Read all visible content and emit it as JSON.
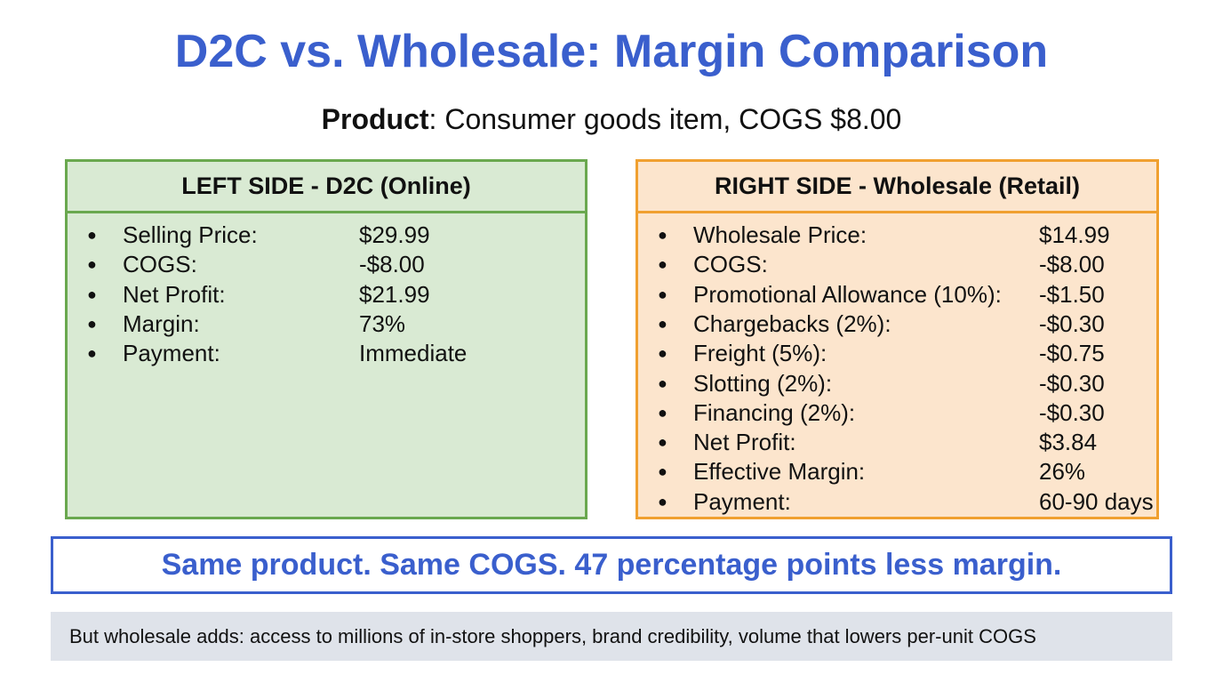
{
  "title": "D2C vs. Wholesale: Margin Comparison",
  "product": {
    "label": "Product",
    "text": ": Consumer goods item, COGS $8.00"
  },
  "panels": [
    {
      "header": "LEFT SIDE - D2C (Online)",
      "items": [
        [
          "Selling Price:",
          "$29.99"
        ],
        [
          "COGS:",
          "-$8.00"
        ],
        [
          "Net Profit:",
          "$21.99"
        ],
        [
          "Margin:",
          "73%"
        ],
        [
          "Payment:",
          "Immediate"
        ]
      ]
    },
    {
      "header": "RIGHT SIDE - Wholesale (Retail)",
      "items": [
        [
          "Wholesale Price:",
          "$14.99"
        ],
        [
          "COGS:",
          "-$8.00"
        ],
        [
          "Promotional Allowance (10%):",
          "-$1.50"
        ],
        [
          "Chargebacks (2%):",
          "-$0.30"
        ],
        [
          "Freight (5%):",
          "-$0.75"
        ],
        [
          "Slotting (2%):",
          "-$0.30"
        ],
        [
          "Financing (2%):",
          "-$0.30"
        ],
        [
          "Net Profit:",
          "$3.84"
        ],
        [
          "Effective Margin:",
          "26%"
        ],
        [
          "Payment:",
          "60-90 days"
        ]
      ]
    }
  ],
  "callout": "Same product. Same COGS. 47 percentage points less margin.",
  "note": "But wholesale adds: access to millions of in-store shoppers, brand credibility, volume that lowers per-unit COGS"
}
